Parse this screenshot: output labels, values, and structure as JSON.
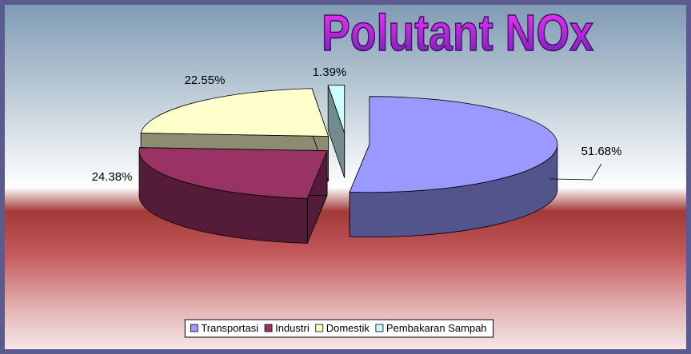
{
  "chart_data": {
    "type": "pie3d",
    "title": "Polutant NOx",
    "categories": [
      "Transportasi",
      "Industri",
      "Domestik",
      "Pembakaran Sampah"
    ],
    "values": [
      51.68,
      24.38,
      22.55,
      1.39
    ],
    "value_labels": [
      "51.68%",
      "24.38%",
      "22.55%",
      "1.39%"
    ],
    "colors": [
      "#9999ff",
      "#993366",
      "#ffffcc",
      "#ccffff"
    ],
    "legend": "bottom"
  }
}
